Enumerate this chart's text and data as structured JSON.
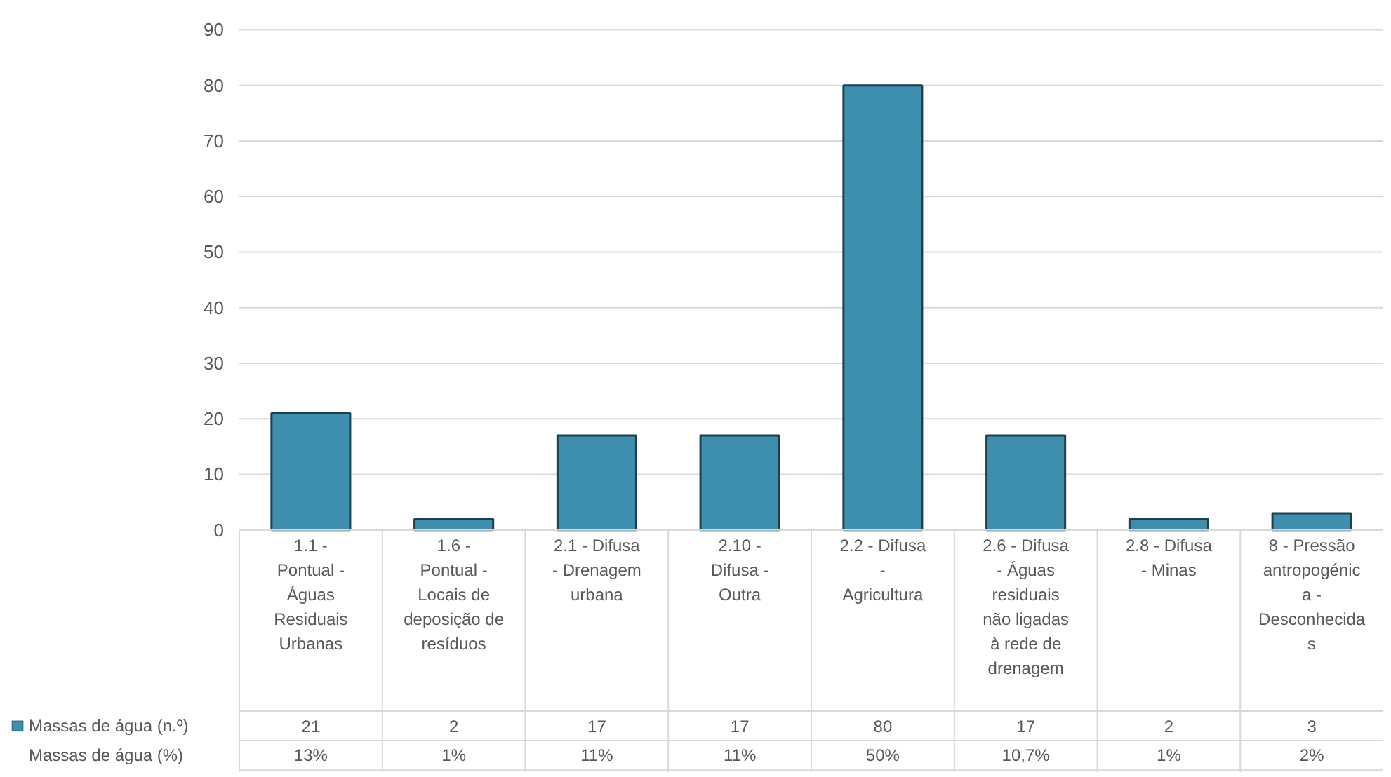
{
  "chart_data": {
    "type": "bar",
    "categories": [
      "1.1 - Pontual - Águas Residuais Urbanas",
      "1.6 - Pontual - Locais de deposição de resíduos",
      "2.1 - Difusa - Drenagem urbana",
      "2.10 - Difusa - Outra",
      "2.2 - Difusa - Agricultura",
      "2.6 - Difusa - Águas residuais não ligadas à rede de drenagem",
      "2.8 - Difusa - Minas",
      "8 - Pressão antropogénica - Desconhecidas"
    ],
    "series": [
      {
        "name": "Massas de água (n.º)",
        "color": "#3e8fae",
        "values": [
          21,
          2,
          17,
          17,
          80,
          17,
          2,
          3
        ]
      }
    ],
    "data_labels": true,
    "annotations": [
      "Massas de água (%)",
      "13%",
      "1%",
      "11%",
      "11%",
      "50%",
      "10,7%",
      "1%",
      "2%"
    ],
    "ylim": [
      0,
      90
    ],
    "yticks": [
      0,
      10,
      20,
      30,
      40,
      50,
      60,
      70,
      80,
      90
    ],
    "grid": "y",
    "legend": "bottom left"
  }
}
